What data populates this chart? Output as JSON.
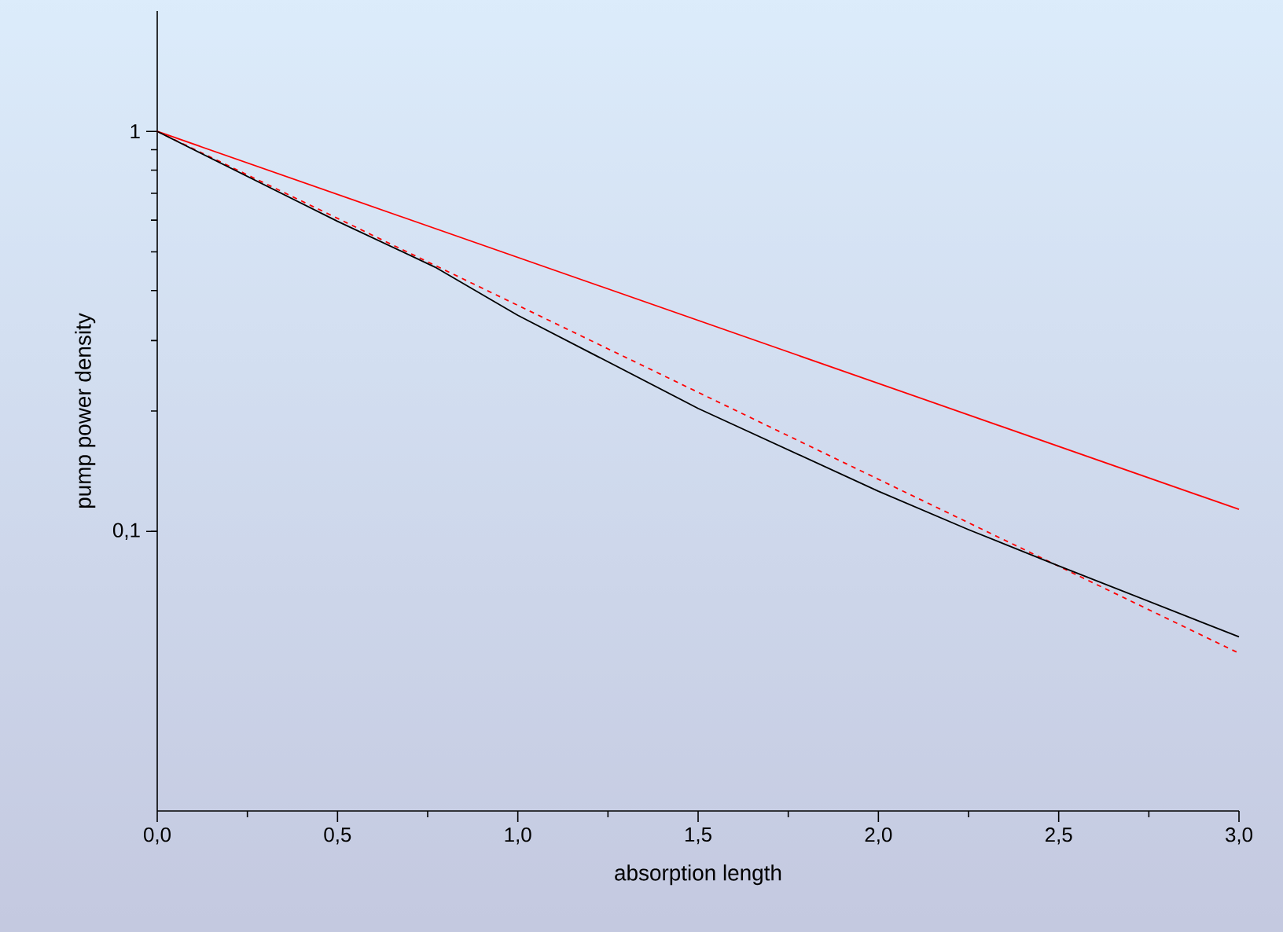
{
  "chart_data": {
    "type": "line",
    "xlabel": "absorption length",
    "ylabel": "pump power density",
    "log": "y",
    "xlim": [
      0,
      3
    ],
    "ylim": [
      0.02,
      2
    ],
    "xticks": [
      {
        "value": 0,
        "label": "0,0"
      },
      {
        "value": 0.5,
        "label": "0,5"
      },
      {
        "value": 1,
        "label": "1,0"
      },
      {
        "value": 1.5,
        "label": "1,5"
      },
      {
        "value": 2,
        "label": "2,0"
      },
      {
        "value": 2.5,
        "label": "2,5"
      },
      {
        "value": 3,
        "label": "3,0"
      }
    ],
    "yticks": [
      {
        "value": 0.1,
        "label": "0,1"
      },
      1
    ],
    "series": [
      {
        "color": "#ff0000",
        "line_style": "solid",
        "x": [
          0,
          3
        ],
        "values": [
          1,
          0.1135
        ]
      },
      {
        "color": "#ff0000",
        "line_style": "dashed",
        "x": [
          0,
          3
        ],
        "values": [
          1,
          0.0496
        ]
      },
      {
        "color": "#000000",
        "line_style": "solid",
        "x": [
          0,
          0.5,
          0.77,
          1,
          1.5,
          2,
          2.25,
          2.5,
          3
        ],
        "values": [
          1,
          0.596,
          0.458,
          0.347,
          0.203,
          0.126,
          0.101,
          0.082,
          0.0545
        ]
      }
    ]
  }
}
